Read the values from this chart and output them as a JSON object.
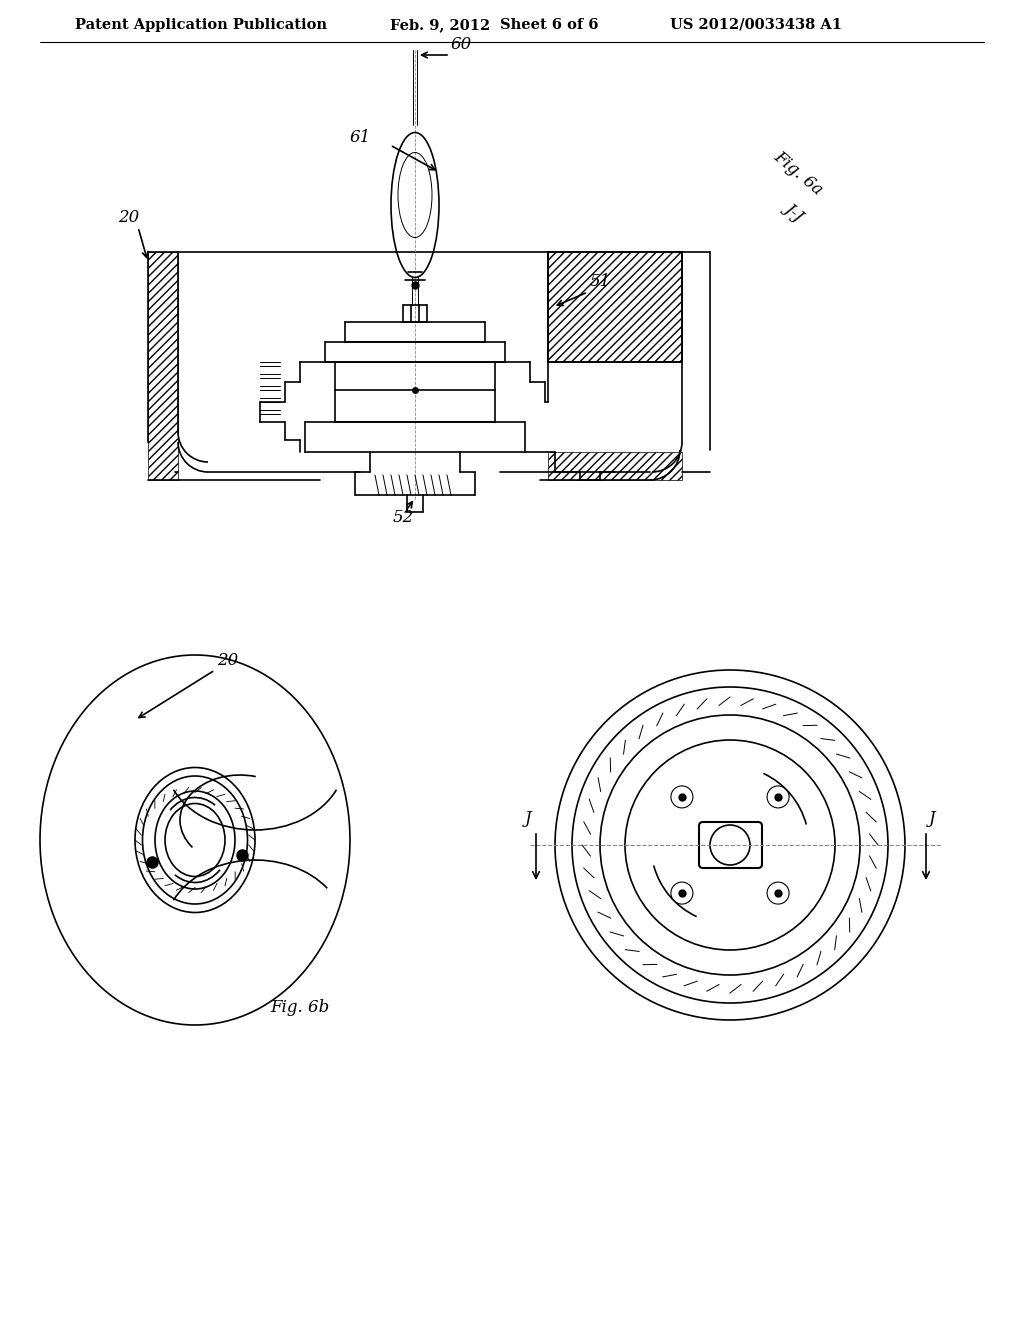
{
  "background_color": "#ffffff",
  "line_color": "#000000",
  "line_width": 1.2,
  "thin_line": 0.7,
  "header_fontsize": 10.5,
  "label_fontsize": 12
}
